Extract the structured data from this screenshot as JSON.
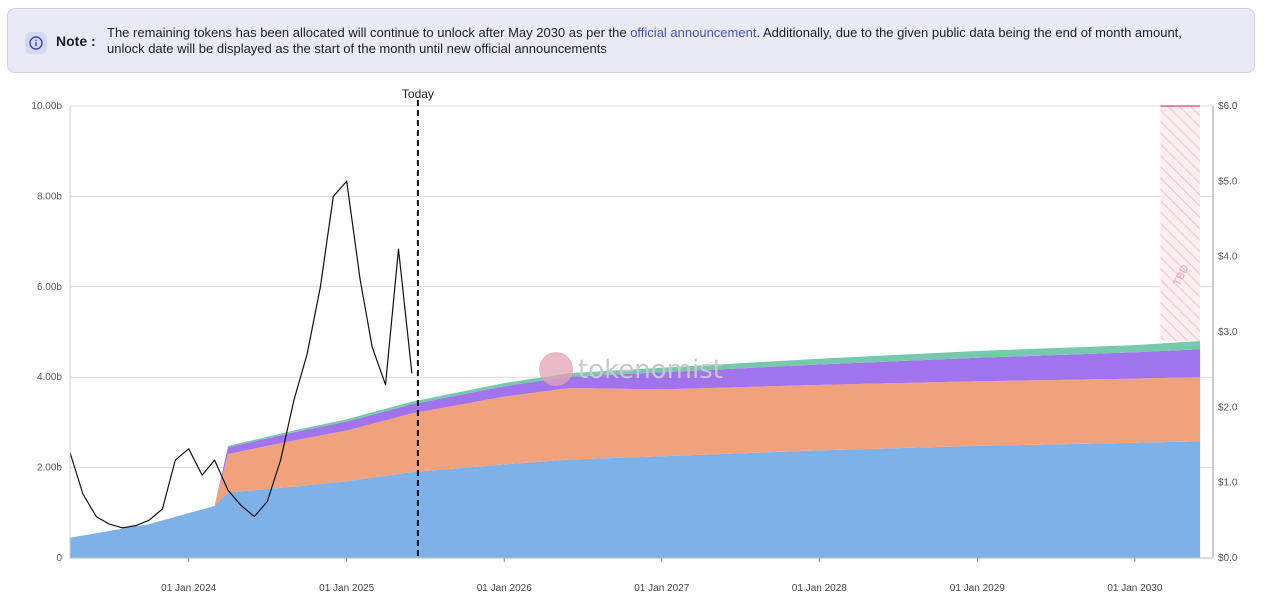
{
  "note": {
    "title": "Note :",
    "text_before": "The remaining tokens has been allocated will continue to unlock after May 2030 as per the ",
    "link_text": "official announcement",
    "text_after": ". Additionally, due to the given public data being the end of month amount, unlock date will be displayed as the start of the month until new official announcements",
    "icon": "info-icon"
  },
  "watermark": "tokenomist",
  "colors": {
    "blue": "#7eb1e8",
    "orange": "#f0a27d",
    "purple": "#a174ee",
    "teal": "#76c9ad",
    "price": "#111111",
    "tbd": "#f4a9bd"
  },
  "chart_data": {
    "type": "area",
    "title": "",
    "x_axis": {
      "type": "date",
      "range": [
        "2023-04-01",
        "2030-07-01"
      ],
      "ticks": [
        "01 Jan 2024",
        "01 Jan 2025",
        "01 Jan 2026",
        "01 Jan 2027",
        "01 Jan 2028",
        "01 Jan 2029",
        "01 Jan 2030"
      ]
    },
    "y_left": {
      "range": [
        0,
        10
      ],
      "unit": "b",
      "ticks": [
        "0",
        "2.00b",
        "4.00b",
        "6.00b",
        "8.00b",
        "10.00b"
      ]
    },
    "y_right": {
      "range": [
        0,
        6
      ],
      "ticks": [
        "$0.0",
        "$1.0",
        "$2.0",
        "$3.0",
        "$4.0",
        "$5.0",
        "$6.0"
      ]
    },
    "today": {
      "label": "Today",
      "date": "2025-06-15"
    },
    "tbd": {
      "label": "TBD",
      "start": "2030-03-01",
      "end": "2030-06-01",
      "value": 10
    },
    "x": [
      "2023-04-01",
      "2023-10-01",
      "2024-03-01",
      "2024-04-01",
      "2024-09-01",
      "2025-01-01",
      "2025-06-01",
      "2026-01-01",
      "2026-06-01",
      "2027-01-01",
      "2028-01-01",
      "2029-01-01",
      "2030-01-01",
      "2030-06-01"
    ],
    "series": [
      {
        "key": "blue",
        "values": [
          0.45,
          0.75,
          1.15,
          1.45,
          1.58,
          1.7,
          1.9,
          2.07,
          2.18,
          2.25,
          2.38,
          2.48,
          2.55,
          2.58
        ]
      },
      {
        "key": "orange",
        "values": [
          0,
          0,
          0,
          0.85,
          1.02,
          1.12,
          1.3,
          1.5,
          1.58,
          1.48,
          1.45,
          1.43,
          1.42,
          1.42
        ]
      },
      {
        "key": "purple",
        "values": [
          0,
          0,
          0,
          0.15,
          0.18,
          0.2,
          0.2,
          0.23,
          0.25,
          0.38,
          0.45,
          0.52,
          0.58,
          0.62
        ]
      },
      {
        "key": "teal",
        "values": [
          0,
          0,
          0,
          0.03,
          0.04,
          0.05,
          0.06,
          0.07,
          0.08,
          0.1,
          0.13,
          0.15,
          0.16,
          0.18
        ]
      }
    ],
    "price": {
      "axis": "right",
      "x": [
        "2023-04-01",
        "2023-05-01",
        "2023-06-01",
        "2023-07-01",
        "2023-08-01",
        "2023-09-01",
        "2023-10-01",
        "2023-11-01",
        "2023-12-01",
        "2024-01-01",
        "2024-02-01",
        "2024-03-01",
        "2024-04-01",
        "2024-05-01",
        "2024-06-01",
        "2024-07-01",
        "2024-08-01",
        "2024-09-01",
        "2024-10-01",
        "2024-11-01",
        "2024-12-01",
        "2025-01-01",
        "2025-02-01",
        "2025-03-01",
        "2025-04-01",
        "2025-05-01",
        "2025-06-01"
      ],
      "values": [
        1.4,
        0.85,
        0.55,
        0.45,
        0.4,
        0.43,
        0.5,
        0.65,
        1.3,
        1.45,
        1.1,
        1.3,
        0.9,
        0.7,
        0.55,
        0.75,
        1.3,
        2.1,
        2.7,
        3.6,
        4.8,
        5.0,
        3.7,
        2.8,
        2.3,
        4.1,
        2.45
      ]
    }
  }
}
